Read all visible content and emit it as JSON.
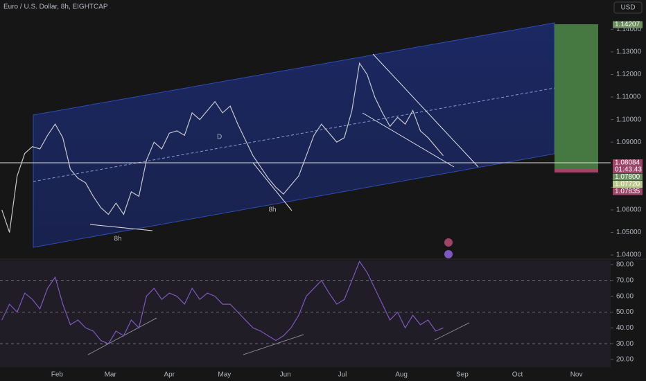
{
  "chart_data": [
    {
      "type": "line",
      "title": "Euro / U.S. Dollar, 8h, EIGHTCAP",
      "currency": "USD",
      "x": [
        2,
        6,
        10,
        14,
        18,
        22,
        26,
        30,
        34,
        38,
        42,
        46,
        50,
        54,
        58,
        62,
        66,
        70,
        74,
        78,
        82,
        86,
        90,
        94,
        98,
        102,
        106,
        110,
        114,
        118,
        122,
        126,
        130,
        134,
        138,
        142,
        146,
        150,
        154,
        158,
        162,
        166,
        170,
        174,
        178,
        182,
        186,
        190,
        194,
        198,
        202,
        206,
        210,
        214,
        218,
        222,
        226,
        230,
        234
      ],
      "series": [
        {
          "color": "#c8c8c8",
          "values": [
            1.06,
            1.05,
            1.075,
            1.085,
            1.088,
            1.087,
            1.093,
            1.098,
            1.092,
            1.078,
            1.074,
            1.072,
            1.066,
            1.061,
            1.058,
            1.063,
            1.058,
            1.068,
            1.066,
            1.082,
            1.09,
            1.087,
            1.094,
            1.095,
            1.093,
            1.103,
            1.1,
            1.104,
            1.108,
            1.103,
            1.106,
            1.098,
            1.091,
            1.084,
            1.079,
            1.074,
            1.07,
            1.067,
            1.071,
            1.075,
            1.084,
            1.093,
            1.098,
            1.094,
            1.09,
            1.092,
            1.104,
            1.125,
            1.12,
            1.11,
            1.103,
            1.097,
            1.101,
            1.098,
            1.104,
            1.095,
            1.092,
            1.088,
            1.084
          ]
        }
      ],
      "xlim": [
        1,
        322
      ],
      "xticks": [
        {
          "value": 31,
          "label": "Feb"
        },
        {
          "value": 59,
          "label": "Mar"
        },
        {
          "value": 90,
          "label": "Apr"
        },
        {
          "value": 119,
          "label": "May"
        },
        {
          "value": 151,
          "label": "Jun"
        },
        {
          "value": 181,
          "label": "Jul"
        },
        {
          "value": 212,
          "label": "Aug"
        },
        {
          "value": 244,
          "label": "Sep"
        },
        {
          "value": 273,
          "label": "Oct"
        },
        {
          "value": 304,
          "label": "Nov"
        }
      ],
      "ylim": [
        1.0388,
        1.153
      ],
      "yticks": [
        {
          "value": 1.04,
          "label": "1.04000"
        },
        {
          "value": 1.05,
          "label": "1.05000"
        },
        {
          "value": 1.06,
          "label": "1.06000"
        },
        {
          "value": 1.07,
          "label": "1.07000"
        },
        {
          "value": 1.09,
          "label": "1.09000"
        },
        {
          "value": 1.1,
          "label": "1.10000"
        },
        {
          "value": 1.11,
          "label": "1.11000"
        },
        {
          "value": 1.12,
          "label": "1.12000"
        },
        {
          "value": 1.13,
          "label": "1.13000"
        },
        {
          "value": 1.14,
          "label": "1.14000"
        }
      ],
      "price_tags": [
        {
          "value": 1.14207,
          "label": "1.14207",
          "color": "#6b8f5e"
        },
        {
          "value": 1.08084,
          "label": "1.08084",
          "color": "#a0446a"
        },
        {
          "value": 1.078,
          "label": "1.07800",
          "color": "#6b8f5e"
        },
        {
          "value": 1.0772,
          "label": "1.07720",
          "color": "#b9c98a"
        },
        {
          "value": 1.07835,
          "label": "1.07835",
          "color": "#a0446a"
        }
      ],
      "countdown": "01:43:43",
      "annotations": [
        "D",
        "8h",
        "8h"
      ]
    },
    {
      "type": "line",
      "x": [
        2,
        6,
        10,
        14,
        18,
        22,
        26,
        30,
        34,
        38,
        42,
        46,
        50,
        54,
        58,
        62,
        66,
        70,
        74,
        78,
        82,
        86,
        90,
        94,
        98,
        102,
        106,
        110,
        114,
        118,
        122,
        126,
        130,
        134,
        138,
        142,
        146,
        150,
        154,
        158,
        162,
        166,
        170,
        174,
        178,
        182,
        186,
        190,
        194,
        198,
        202,
        206,
        210,
        214,
        218,
        222,
        226,
        230,
        234
      ],
      "series": [
        {
          "color": "#7e57c2",
          "values": [
            45,
            55,
            50,
            62,
            58,
            52,
            65,
            72,
            55,
            42,
            45,
            40,
            38,
            32,
            30,
            38,
            35,
            45,
            40,
            60,
            65,
            58,
            62,
            60,
            55,
            65,
            58,
            62,
            60,
            55,
            55,
            50,
            45,
            40,
            38,
            35,
            32,
            35,
            40,
            48,
            60,
            65,
            70,
            62,
            55,
            58,
            70,
            82,
            75,
            65,
            55,
            45,
            50,
            40,
            48,
            42,
            45,
            38,
            40
          ]
        }
      ],
      "xlim": [
        1,
        322
      ],
      "ylim": [
        15.2,
        82.6
      ],
      "yticks": [
        {
          "value": 20,
          "label": "20.00"
        },
        {
          "value": 30,
          "label": "30.00"
        },
        {
          "value": 40,
          "label": "40.00"
        },
        {
          "value": 50,
          "label": "50.00"
        },
        {
          "value": 60,
          "label": "60.00"
        },
        {
          "value": 70,
          "label": "70.00"
        },
        {
          "value": 80,
          "label": "80.00"
        }
      ],
      "levels": [
        30,
        50,
        70
      ]
    }
  ]
}
